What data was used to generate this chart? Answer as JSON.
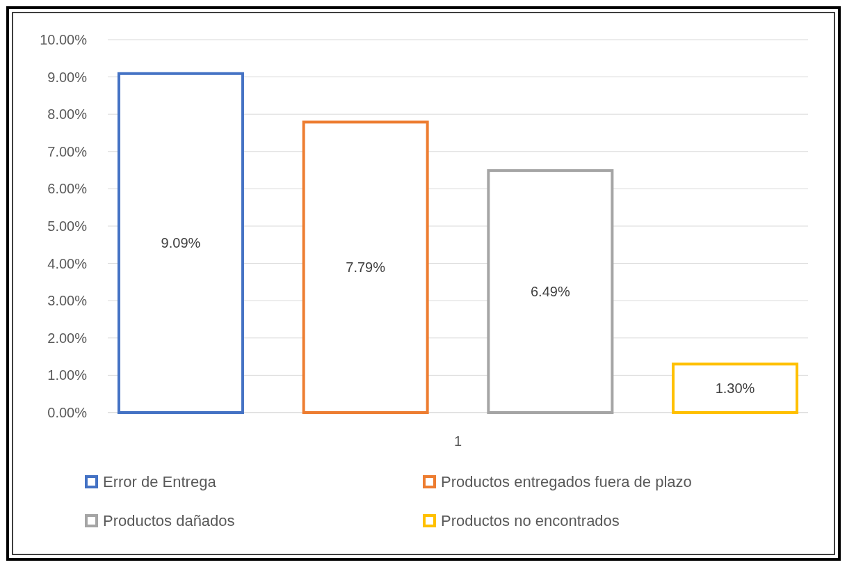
{
  "chart_data": {
    "type": "bar",
    "categories": [
      "1"
    ],
    "series": [
      {
        "name": "Error de Entrega",
        "color": "#4472c4",
        "values": [
          9.09
        ],
        "value_labels": [
          "9.09%"
        ]
      },
      {
        "name": "Productos entregados fuera de plazo",
        "color": "#ed7d31",
        "values": [
          7.79
        ],
        "value_labels": [
          "7.79%"
        ]
      },
      {
        "name": "Productos dañados",
        "color": "#a5a5a5",
        "values": [
          6.49
        ],
        "value_labels": [
          "6.49%"
        ]
      },
      {
        "name": "Productos no encontrados",
        "color": "#ffc000",
        "values": [
          1.3
        ],
        "value_labels": [
          "1.30%"
        ]
      }
    ],
    "ylim": [
      0,
      10
    ],
    "yticks": [
      {
        "value": 0,
        "label": "0.00%"
      },
      {
        "value": 1,
        "label": "1.00%"
      },
      {
        "value": 2,
        "label": "2.00%"
      },
      {
        "value": 3,
        "label": "3.00%"
      },
      {
        "value": 4,
        "label": "4.00%"
      },
      {
        "value": 5,
        "label": "5.00%"
      },
      {
        "value": 6,
        "label": "6.00%"
      },
      {
        "value": 7,
        "label": "7.00%"
      },
      {
        "value": 8,
        "label": "8.00%"
      },
      {
        "value": 9,
        "label": "9.00%"
      },
      {
        "value": 10,
        "label": "10.00%"
      }
    ],
    "grid": "y",
    "legend": "bottom"
  }
}
